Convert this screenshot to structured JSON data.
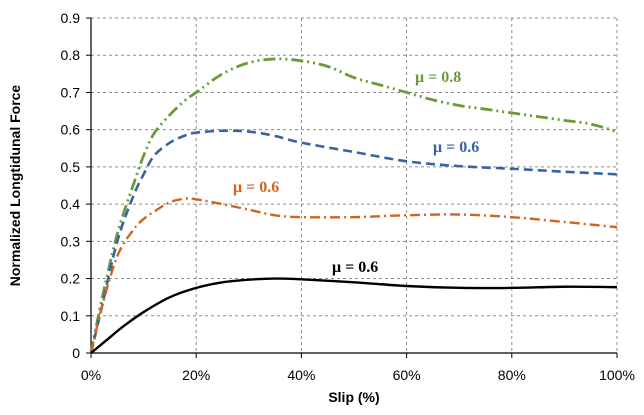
{
  "chart_data": {
    "type": "line",
    "title": "",
    "xlabel": "Slip (%)",
    "ylabel": "Normalized Longtidunal Force",
    "xlim": [
      0,
      100
    ],
    "ylim": [
      0,
      0.9
    ],
    "x_ticks": [
      0,
      20,
      40,
      60,
      80,
      100
    ],
    "x_tick_labels": [
      "0%",
      "20%",
      "40%",
      "60%",
      "80%",
      "100%"
    ],
    "y_ticks": [
      0,
      0.1,
      0.2,
      0.3,
      0.4,
      0.5,
      0.6,
      0.7,
      0.8,
      0.9
    ],
    "y_tick_labels": [
      "0",
      "0.1",
      "0.2",
      "0.3",
      "0.4",
      "0.5",
      "0.6",
      "0.7",
      "0.8",
      "0.9"
    ],
    "grid": true,
    "legend": "none",
    "series": [
      {
        "label": "μ = 0.8",
        "color": "#6a9a3a",
        "dash": "dash-dot-dot",
        "x": [
          0,
          2,
          5,
          8,
          10,
          12,
          15,
          18,
          20,
          25,
          30,
          35,
          40,
          45,
          50,
          55,
          60,
          65,
          70,
          75,
          80,
          85,
          90,
          95,
          100
        ],
        "y": [
          0,
          0.14,
          0.32,
          0.45,
          0.53,
          0.59,
          0.64,
          0.68,
          0.7,
          0.75,
          0.78,
          0.79,
          0.785,
          0.77,
          0.74,
          0.72,
          0.7,
          0.68,
          0.665,
          0.655,
          0.645,
          0.635,
          0.625,
          0.615,
          0.595
        ]
      },
      {
        "label": "μ = 0.6",
        "color": "#3464a4",
        "dash": "dashed",
        "x": [
          0,
          2,
          5,
          8,
          10,
          12,
          15,
          18,
          20,
          25,
          30,
          35,
          40,
          50,
          60,
          70,
          80,
          90,
          100
        ],
        "y": [
          0,
          0.12,
          0.3,
          0.42,
          0.48,
          0.53,
          0.565,
          0.585,
          0.592,
          0.597,
          0.595,
          0.583,
          0.565,
          0.54,
          0.515,
          0.502,
          0.495,
          0.487,
          0.48
        ]
      },
      {
        "label": "μ = 0.6",
        "color": "#d0641e",
        "dash": "dash-dot",
        "x": [
          0,
          2,
          5,
          8,
          10,
          12,
          15,
          18,
          20,
          25,
          30,
          35,
          40,
          50,
          60,
          70,
          80,
          90,
          100
        ],
        "y": [
          0,
          0.12,
          0.26,
          0.33,
          0.36,
          0.38,
          0.405,
          0.415,
          0.413,
          0.4,
          0.385,
          0.37,
          0.365,
          0.365,
          0.37,
          0.372,
          0.365,
          0.352,
          0.338
        ]
      },
      {
        "label": "μ = 0.6",
        "color": "#000000",
        "dash": "solid",
        "x": [
          0,
          3,
          6,
          10,
          15,
          20,
          25,
          30,
          35,
          40,
          50,
          60,
          70,
          80,
          90,
          100
        ],
        "y": [
          0,
          0.035,
          0.07,
          0.11,
          0.15,
          0.175,
          0.19,
          0.197,
          0.2,
          0.198,
          0.19,
          0.18,
          0.175,
          0.175,
          0.178,
          0.177
        ]
      }
    ]
  }
}
